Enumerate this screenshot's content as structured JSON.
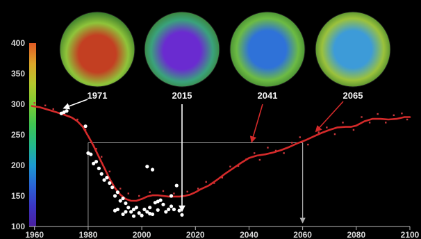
{
  "chart_data": {
    "type": "scatter",
    "title": "",
    "xlabel": "",
    "ylabel": "",
    "xlim": [
      1958,
      2100
    ],
    "ylim": [
      100,
      400
    ],
    "x_ticks": [
      "1960",
      "1980",
      "2000",
      "2020",
      "2040",
      "2060",
      "2080",
      "2100"
    ],
    "y_ticks": [
      "100",
      "150",
      "200",
      "250",
      "300",
      "350",
      "400"
    ],
    "colorbar": {
      "range": [
        100,
        400
      ],
      "colors": [
        "#4a1fa0",
        "#3b36c4",
        "#2a64d6",
        "#1c9ad2",
        "#23b98a",
        "#3fc452",
        "#7ccc33",
        "#b4c82d",
        "#dca52a",
        "#e05a24"
      ]
    },
    "ozone_maps": [
      {
        "year_label": "1971",
        "center_color": "#c33f22",
        "ring_color": "#8fc43a"
      },
      {
        "year_label": "2015",
        "center_color": "#6a2bd0",
        "ring_color": "#3aa27c"
      },
      {
        "year_label": "2041",
        "center_color": "#2f72d8",
        "ring_color": "#6cbb44"
      },
      {
        "year_label": "2065",
        "center_color": "#3d9bd8",
        "ring_color": "#9bc23c"
      }
    ],
    "guide": {
      "horizontal_y": 237,
      "left_x": 1980,
      "right_x": 2060
    },
    "arrow_targets": [
      {
        "from_map": "1971",
        "x": 1971,
        "y": 288
      },
      {
        "from_map": "2015",
        "x": 2015,
        "y": 120
      },
      {
        "from_map": "2041",
        "x": 2041,
        "y": 233
      },
      {
        "from_map": "2065",
        "x": 2065,
        "y": 250
      }
    ],
    "series": [
      {
        "style": "trend-line",
        "color": "#d42a2a",
        "points": [
          [
            1959,
            297
          ],
          [
            1962,
            295
          ],
          [
            1965,
            291
          ],
          [
            1968,
            287
          ],
          [
            1971,
            283
          ],
          [
            1974,
            278
          ],
          [
            1976,
            272
          ],
          [
            1978,
            263
          ],
          [
            1980,
            248
          ],
          [
            1982,
            232
          ],
          [
            1984,
            214
          ],
          [
            1986,
            196
          ],
          [
            1988,
            178
          ],
          [
            1990,
            163
          ],
          [
            1992,
            152
          ],
          [
            1994,
            145
          ],
          [
            1996,
            142
          ],
          [
            1998,
            142
          ],
          [
            2000,
            145
          ],
          [
            2002,
            149
          ],
          [
            2004,
            151
          ],
          [
            2006,
            151
          ],
          [
            2008,
            150
          ],
          [
            2010,
            149
          ],
          [
            2012,
            149
          ],
          [
            2014,
            149
          ],
          [
            2016,
            150
          ],
          [
            2018,
            152
          ],
          [
            2020,
            156
          ],
          [
            2022,
            161
          ],
          [
            2025,
            167
          ],
          [
            2028,
            176
          ],
          [
            2031,
            186
          ],
          [
            2034,
            195
          ],
          [
            2037,
            204
          ],
          [
            2040,
            212
          ],
          [
            2043,
            216
          ],
          [
            2046,
            218
          ],
          [
            2049,
            221
          ],
          [
            2052,
            225
          ],
          [
            2055,
            230
          ],
          [
            2058,
            236
          ],
          [
            2061,
            241
          ],
          [
            2064,
            247
          ],
          [
            2067,
            253
          ],
          [
            2070,
            258
          ],
          [
            2073,
            262
          ],
          [
            2076,
            263
          ],
          [
            2078,
            263
          ],
          [
            2080,
            265
          ],
          [
            2083,
            272
          ],
          [
            2086,
            276
          ],
          [
            2089,
            276
          ],
          [
            2092,
            275
          ],
          [
            2095,
            276
          ],
          [
            2098,
            279
          ],
          [
            2100,
            279
          ]
        ]
      },
      {
        "style": "observations",
        "color": "#ffffff",
        "points": [
          [
            1970,
            285
          ],
          [
            1971,
            287
          ],
          [
            1972,
            289
          ],
          [
            1979,
            264
          ],
          [
            1980,
            220
          ],
          [
            1981,
            218
          ],
          [
            1982,
            203
          ],
          [
            1983,
            206
          ],
          [
            1984,
            195
          ],
          [
            1985,
            186
          ],
          [
            1986,
            176
          ],
          [
            1987,
            180
          ],
          [
            1988,
            171
          ],
          [
            1989,
            164
          ],
          [
            1990,
            150
          ],
          [
            1990,
            126
          ],
          [
            1991,
            156
          ],
          [
            1991,
            128
          ],
          [
            1992,
            142
          ],
          [
            1993,
            146
          ],
          [
            1993,
            120
          ],
          [
            1994,
            138
          ],
          [
            1994,
            124
          ],
          [
            1995,
            131
          ],
          [
            1996,
            124
          ],
          [
            1997,
            128
          ],
          [
            1997,
            117
          ],
          [
            1998,
            131
          ],
          [
            1999,
            122
          ],
          [
            2000,
            118
          ],
          [
            2001,
            128
          ],
          [
            2002,
            124
          ],
          [
            2003,
            131
          ],
          [
            2003,
            121
          ],
          [
            2004,
            120
          ],
          [
            2005,
            139
          ],
          [
            2006,
            127
          ],
          [
            2006,
            141
          ],
          [
            2007,
            143
          ],
          [
            2008,
            136
          ],
          [
            2009,
            124
          ],
          [
            2010,
            128
          ],
          [
            2011,
            133
          ],
          [
            2012,
            128
          ],
          [
            2013,
            167
          ],
          [
            2014,
            126
          ],
          [
            2015,
            119
          ],
          [
            2002,
            198
          ],
          [
            2004,
            193
          ],
          [
            2011,
            150
          ]
        ]
      },
      {
        "style": "model-scatter",
        "color": "#c8383c",
        "points": [
          [
            1960,
            302
          ],
          [
            1964,
            298
          ],
          [
            1967,
            292
          ],
          [
            1970,
            286
          ],
          [
            1973,
            280
          ],
          [
            1976,
            275
          ],
          [
            1979,
            258
          ],
          [
            1983,
            227
          ],
          [
            1985,
            214
          ],
          [
            1988,
            190
          ],
          [
            1992,
            162
          ],
          [
            1995,
            154
          ],
          [
            1999,
            150
          ],
          [
            2003,
            156
          ],
          [
            2008,
            158
          ],
          [
            2012,
            154
          ],
          [
            2017,
            157
          ],
          [
            2021,
            162
          ],
          [
            2024,
            173
          ],
          [
            2027,
            171
          ],
          [
            2030,
            180
          ],
          [
            2033,
            198
          ],
          [
            2036,
            199
          ],
          [
            2039,
            210
          ],
          [
            2042,
            220
          ],
          [
            2044,
            209
          ],
          [
            2047,
            229
          ],
          [
            2050,
            224
          ],
          [
            2053,
            220
          ],
          [
            2056,
            237
          ],
          [
            2059,
            246
          ],
          [
            2062,
            234
          ],
          [
            2066,
            254
          ],
          [
            2069,
            262
          ],
          [
            2072,
            251
          ],
          [
            2075,
            270
          ],
          [
            2079,
            258
          ],
          [
            2082,
            279
          ],
          [
            2085,
            270
          ],
          [
            2088,
            284
          ],
          [
            2091,
            270
          ],
          [
            2094,
            282
          ],
          [
            2097,
            285
          ],
          [
            2099,
            275
          ]
        ]
      }
    ]
  }
}
